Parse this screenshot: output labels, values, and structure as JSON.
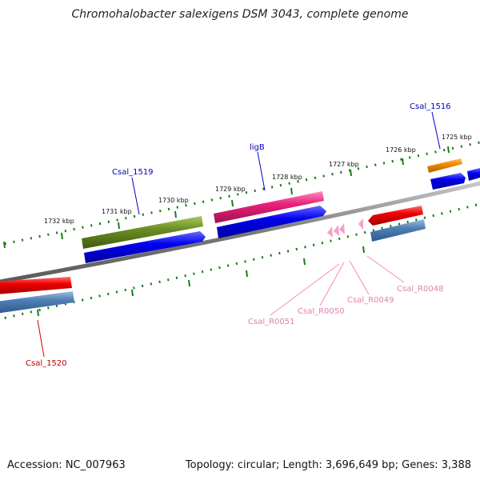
{
  "title": "Chromohalobacter salexigens DSM 3043, complete genome",
  "accession": "Accession: NC_007963",
  "topology": "Topology: circular; Length: 3,696,649 bp; Genes: 3,388",
  "colors": {
    "backbone": "#808080",
    "tick": "#1a7a1a",
    "cds_forward": "#0000e0",
    "cds_reverse_steel": "#4f7fb5",
    "red": "#e00000",
    "olive": "#6b8e23",
    "pink": "#e8207a",
    "orange": "#f08c00",
    "rna": "#f4a0c8"
  },
  "kbp_labels": [
    "1725 kbp",
    "1726 kbp",
    "1727 kbp",
    "1728 kbp",
    "1729 kbp",
    "1730 kbp",
    "1731 kbp",
    "1732 kbp"
  ],
  "gene_labels": {
    "csal_1516": "Csal_1516",
    "ligb": "ligB",
    "csal_1519": "Csal_1519",
    "csal_1520": "Csal_1520",
    "csal_r0048": "Csal_R0048",
    "csal_r0049": "Csal_R0049",
    "csal_r0050": "Csal_R0050",
    "csal_r0051": "Csal_R0051"
  }
}
